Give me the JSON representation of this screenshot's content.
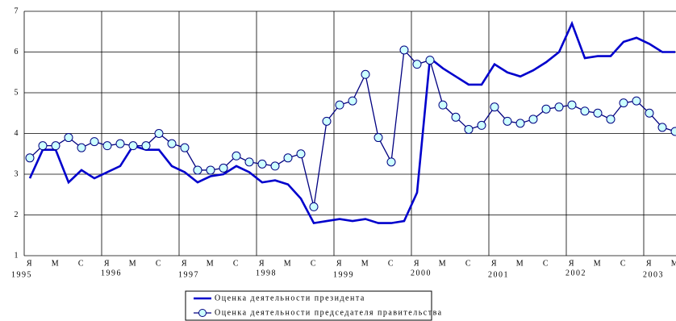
{
  "chart_data": {
    "type": "line",
    "categories": [
      "Я",
      null,
      "М",
      null,
      "С",
      null,
      "Я",
      null,
      "М",
      null,
      "С",
      null,
      "Я",
      null,
      "М",
      null,
      "С",
      null,
      "Я",
      null,
      "М",
      null,
      "С",
      null,
      "Я",
      null,
      "М",
      null,
      "С",
      null,
      "Я",
      null,
      "М",
      null,
      "С",
      null,
      "Я",
      null,
      "М",
      null,
      "С",
      null,
      "Я",
      null,
      "М",
      null,
      "С",
      null,
      "Я",
      null,
      "М"
    ],
    "years": [
      "1995",
      "1996",
      "1997",
      "1998",
      "1999",
      "2000",
      "2001",
      "2002",
      "2003"
    ],
    "series": [
      {
        "name": "Оценка деятельности президента",
        "color": "#0000cc",
        "marker": false,
        "values": [
          2.9,
          3.6,
          3.6,
          2.8,
          3.1,
          2.9,
          3.05,
          3.2,
          3.7,
          3.6,
          3.6,
          3.2,
          3.05,
          2.8,
          2.95,
          3.0,
          3.2,
          3.05,
          2.8,
          2.85,
          2.75,
          2.4,
          1.8,
          1.85,
          1.9,
          1.85,
          1.9,
          1.8,
          1.8,
          1.85,
          2.55,
          5.85,
          5.6,
          5.4,
          5.2,
          5.2,
          5.7,
          5.5,
          5.4,
          5.55,
          5.75,
          6.0,
          6.7,
          5.85,
          5.9,
          5.9,
          6.25,
          6.35,
          6.2,
          6.0,
          6.0
        ]
      },
      {
        "name": "Оценка деятельности председателя правительства",
        "color": "#000080",
        "marker": true,
        "marker_color": "#ccffff",
        "values": [
          3.4,
          3.7,
          3.7,
          3.9,
          3.65,
          3.8,
          3.7,
          3.75,
          3.7,
          3.7,
          4.0,
          3.75,
          3.65,
          3.1,
          3.1,
          3.15,
          3.45,
          3.3,
          3.25,
          3.2,
          3.4,
          3.5,
          2.2,
          4.3,
          4.7,
          4.8,
          5.45,
          3.9,
          3.3,
          6.05,
          5.7,
          5.8,
          4.7,
          4.4,
          4.1,
          4.2,
          4.65,
          4.3,
          4.25,
          4.35,
          4.6,
          4.65,
          4.7,
          4.55,
          4.5,
          4.35,
          4.75,
          4.8,
          4.5,
          4.15,
          4.05
        ]
      }
    ],
    "ylim": [
      1,
      7
    ],
    "yticks": [
      1,
      2,
      3,
      4,
      5,
      6,
      7
    ],
    "grid": true
  }
}
